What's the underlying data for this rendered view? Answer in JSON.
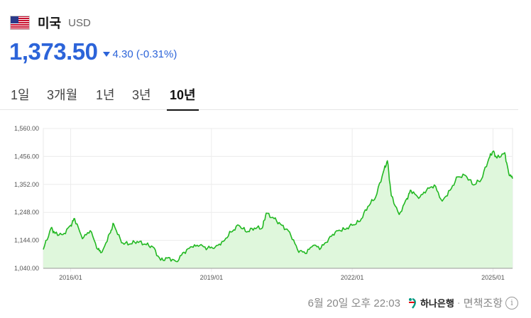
{
  "header": {
    "flag_icon": "us-flag-icon",
    "country": "미국",
    "currency": "USD"
  },
  "quote": {
    "price": "1,373.50",
    "change": "4.30 (-0.31%)",
    "direction": "down",
    "color": "#2c64d9"
  },
  "tabs": [
    {
      "label": "1일",
      "active": false
    },
    {
      "label": "3개월",
      "active": false
    },
    {
      "label": "1년",
      "active": false
    },
    {
      "label": "3년",
      "active": false
    },
    {
      "label": "10년",
      "active": true
    }
  ],
  "chart_data": {
    "type": "area",
    "line_color": "#22b822",
    "fill_color": "#dff7dc",
    "ylim": [
      1040,
      1560
    ],
    "yticks": [
      1040,
      1144,
      1248,
      1352,
      1456,
      1560
    ],
    "ytick_labels": [
      "1,040.00",
      "1,144.00",
      "1,248.00",
      "1,352.00",
      "1,456.00",
      "1,560.00"
    ],
    "xlim": [
      "2015-06",
      "2025-06"
    ],
    "xticks": [
      "2016-01",
      "2019-01",
      "2022-01",
      "2025-01"
    ],
    "xtick_labels": [
      "2016/01",
      "2019/01",
      "2022/01",
      "2025/01"
    ],
    "grid": true,
    "series": [
      {
        "x": [
          "2015-06",
          "2015-08",
          "2015-09",
          "2015-11",
          "2016-01",
          "2016-02",
          "2016-04",
          "2016-06",
          "2016-08",
          "2016-09",
          "2016-11",
          "2016-12",
          "2017-02",
          "2017-04",
          "2017-06",
          "2017-08",
          "2017-10",
          "2017-12",
          "2018-02",
          "2018-04",
          "2018-06",
          "2018-08",
          "2018-10",
          "2018-12",
          "2019-02",
          "2019-04",
          "2019-06",
          "2019-08",
          "2019-10",
          "2019-12",
          "2020-02",
          "2020-03",
          "2020-05",
          "2020-07",
          "2020-09",
          "2020-11",
          "2021-01",
          "2021-03",
          "2021-05",
          "2021-07",
          "2021-09",
          "2021-11",
          "2022-01",
          "2022-03",
          "2022-05",
          "2022-07",
          "2022-09",
          "2022-10",
          "2022-11",
          "2023-01",
          "2023-03",
          "2023-04",
          "2023-06",
          "2023-08",
          "2023-10",
          "2023-12",
          "2024-02",
          "2024-04",
          "2024-06",
          "2024-08",
          "2024-10",
          "2024-12",
          "2025-01",
          "2025-02",
          "2025-04",
          "2025-05",
          "2025-06"
        ],
        "values": [
          1110,
          1190,
          1170,
          1165,
          1200,
          1225,
          1150,
          1180,
          1110,
          1100,
          1170,
          1205,
          1135,
          1130,
          1140,
          1130,
          1120,
          1070,
          1080,
          1065,
          1100,
          1120,
          1125,
          1115,
          1120,
          1140,
          1175,
          1200,
          1175,
          1190,
          1190,
          1245,
          1225,
          1200,
          1175,
          1110,
          1095,
          1125,
          1115,
          1150,
          1180,
          1185,
          1200,
          1215,
          1270,
          1305,
          1400,
          1440,
          1310,
          1240,
          1300,
          1330,
          1300,
          1330,
          1350,
          1290,
          1330,
          1380,
          1385,
          1350,
          1370,
          1450,
          1475,
          1450,
          1470,
          1395,
          1373.5
        ]
      }
    ]
  },
  "footer": {
    "timestamp": "6월 20일 오후 22:03",
    "bank": "하나은행",
    "separator": "·",
    "disclaimer": "면책조항",
    "info_icon": "info-icon"
  }
}
